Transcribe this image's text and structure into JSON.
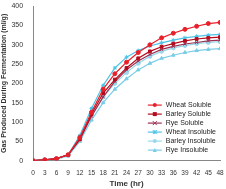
{
  "chart_data": {
    "type": "line",
    "x_label": "Time (hr)",
    "y_label": "Gas Produced During Fermentation (ml/g)",
    "x": [
      0,
      3,
      6,
      9,
      12,
      15,
      18,
      21,
      24,
      27,
      30,
      33,
      36,
      39,
      42,
      45,
      48
    ],
    "xlim": [
      0,
      48
    ],
    "xticks": [
      0,
      3,
      6,
      9,
      12,
      15,
      18,
      21,
      24,
      27,
      30,
      33,
      36,
      39,
      42,
      45,
      48
    ],
    "ylim": [
      0,
      400
    ],
    "yticks": [
      0,
      50,
      100,
      150,
      200,
      250,
      300,
      350,
      400
    ],
    "grid": false,
    "legend": "lower right",
    "series": [
      {
        "name": "Wheat Soluble",
        "color": "#e8202a",
        "marker": "circle",
        "line_style": "solid",
        "values": [
          0,
          2,
          5,
          15,
          60,
          125,
          185,
          225,
          255,
          280,
          300,
          318,
          330,
          340,
          348,
          355,
          358
        ]
      },
      {
        "name": "Barley Soluble",
        "color": "#b40c1e",
        "marker": "square",
        "line_style": "solid",
        "values": [
          0,
          2,
          5,
          15,
          55,
          120,
          175,
          210,
          240,
          265,
          283,
          295,
          303,
          310,
          315,
          318,
          320
        ]
      },
      {
        "name": "Rye Soluble",
        "color": "#9c3050",
        "marker": "x",
        "line_style": "solid",
        "values": [
          0,
          2,
          5,
          15,
          55,
          115,
          165,
          205,
          235,
          258,
          275,
          288,
          296,
          302,
          306,
          310,
          312
        ]
      },
      {
        "name": "Wheat Insoluble",
        "color": "#4fc3e6",
        "marker": "star",
        "line_style": "solid",
        "values": [
          0,
          2,
          5,
          15,
          65,
          135,
          195,
          240,
          268,
          285,
          297,
          305,
          312,
          318,
          322,
          325,
          327
        ]
      },
      {
        "name": "Barley Insoluble",
        "color": "#9ad8ec",
        "marker": "circle",
        "line_style": "solid",
        "values": [
          0,
          2,
          5,
          14,
          55,
          115,
          165,
          200,
          228,
          252,
          270,
          283,
          292,
          298,
          303,
          306,
          308
        ]
      },
      {
        "name": "Rye Insoluble",
        "color": "#78cde6",
        "marker": "triangle",
        "line_style": "solid",
        "values": [
          0,
          2,
          4,
          12,
          50,
          105,
          150,
          185,
          212,
          235,
          252,
          265,
          273,
          280,
          285,
          288,
          290
        ]
      }
    ]
  }
}
